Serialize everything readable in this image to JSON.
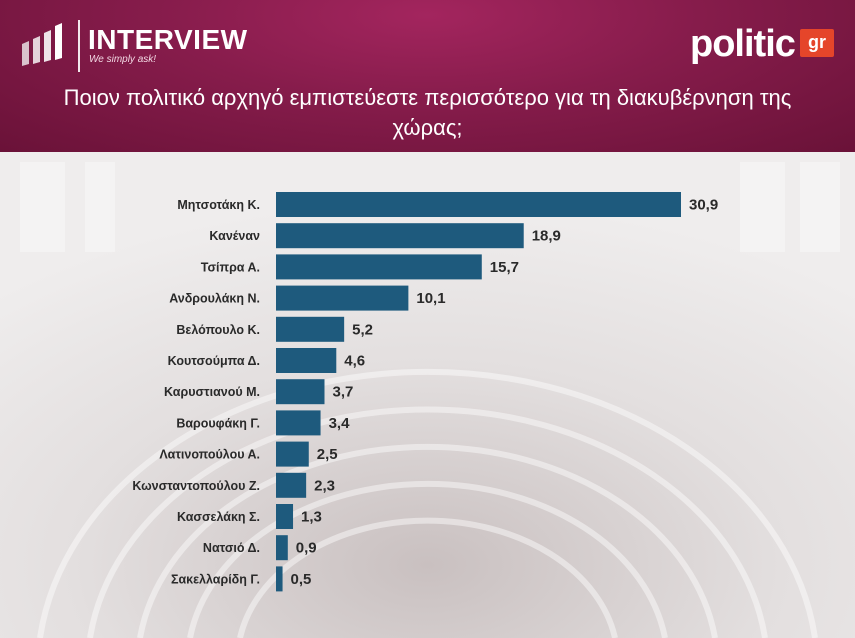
{
  "brand": {
    "name": "INTERVIEW",
    "tagline": "We simply ask!"
  },
  "publisher": {
    "word": "politic",
    "suffix": "gr"
  },
  "colors": {
    "bar": "#1e5a7d",
    "header": "#861c4b",
    "accent": "#e5452a"
  },
  "chart_data": {
    "type": "bar",
    "orientation": "horizontal",
    "title": "Ποιον πολιτικό αρχηγό εμπιστεύεστε περισσότερο για τη διακυβέρνηση της χώρας;",
    "categories": [
      "Μητσοτάκη Κ.",
      "Κανέναν",
      "Τσίπρα Α.",
      "Ανδρουλάκη Ν.",
      "Βελόπουλο Κ.",
      "Κουτσούμπα Δ.",
      "Καρυστιανού Μ.",
      "Βαρουφάκη Γ.",
      "Λατινοπούλου Α.",
      "Κωνσταντοπούλου Ζ.",
      "Κασσελάκη Σ.",
      "Νατσιό Δ.",
      "Σακελλαρίδη Γ."
    ],
    "values": [
      30.9,
      18.9,
      15.7,
      10.1,
      5.2,
      4.6,
      3.7,
      3.4,
      2.5,
      2.3,
      1.3,
      0.9,
      0.5
    ],
    "value_labels": [
      "30,9",
      "18,9",
      "15,7",
      "10,1",
      "5,2",
      "4,6",
      "3,7",
      "3,4",
      "2,5",
      "2,3",
      "1,3",
      "0,9",
      "0,5"
    ],
    "xlabel": "",
    "ylabel": "",
    "xlim": [
      0,
      30.9
    ],
    "grid": false
  }
}
